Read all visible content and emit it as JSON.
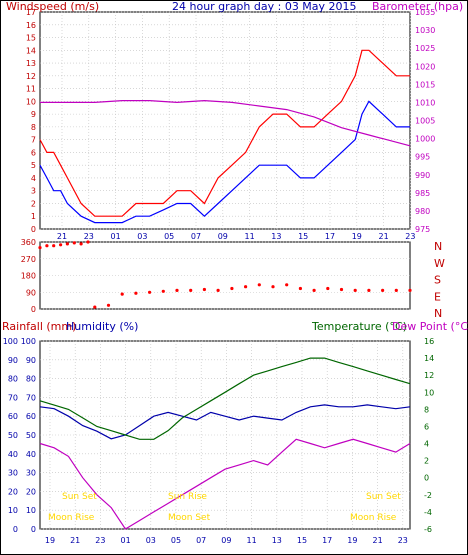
{
  "colors": {
    "wind": "#ff0000",
    "gust": "#e00000",
    "avg": "#0000ff",
    "baro": "#c000c0",
    "dir": "#ff0000",
    "rain_title": "#c00000",
    "humidity": "#0000aa",
    "temperature": "#006600",
    "dewpoint": "#c000c0",
    "astro": "#ffd700",
    "grid": "#c0c0c0"
  },
  "labels": {
    "windspeed": "Windspeed (m/s)",
    "title": "24 hour graph day : 03 May 2015",
    "barometer": "Barometer (hpa)",
    "rainfall": "Rainfall (mm)",
    "humidity": "Humidity (%)",
    "temperature": "Temperature (°C)",
    "dewpoint": "Dew Point (°C)",
    "sun_set": "Sun Set",
    "sun_rise": "Sun Rise",
    "moon_rise": "Moon Rise",
    "moon_set": "Moon Set"
  },
  "chart_data": [
    {
      "type": "line",
      "title": "24 hour graph day : 03 May 2015",
      "xlabel": "",
      "ylabel": "Windspeed (m/s)",
      "y2label": "Barometer (hpa)",
      "x_ticks": [
        "21",
        "23",
        "01",
        "03",
        "05",
        "07",
        "09",
        "11",
        "13",
        "15",
        "17",
        "19",
        "21",
        "23"
      ],
      "ylim": [
        0,
        17
      ],
      "y_ticks": [
        "0",
        "1",
        "2",
        "3",
        "4",
        "5",
        "6",
        "7",
        "8",
        "9",
        "10",
        "11",
        "12",
        "13",
        "14",
        "15",
        "16",
        "17"
      ],
      "y2lim": [
        975,
        1035
      ],
      "y2_ticks": [
        "975",
        "980",
        "985",
        "990",
        "995",
        "1000",
        "1005",
        "1010",
        "1015",
        "1020",
        "1025",
        "1030",
        "1035"
      ],
      "grid": true,
      "series": [
        {
          "name": "gust",
          "color": "wind",
          "axis": "left",
          "x": [
            0,
            0.5,
            1,
            1.5,
            2,
            3,
            4,
            5,
            6,
            7,
            8,
            9,
            10,
            11,
            12,
            13,
            14,
            15,
            16,
            17,
            18,
            19,
            20,
            21,
            22,
            23,
            23.5,
            24,
            25,
            26,
            27
          ],
          "values": [
            7,
            6,
            6,
            5,
            4,
            2,
            1,
            1,
            1,
            2,
            2,
            2,
            3,
            3,
            2,
            4,
            5,
            6,
            8,
            9,
            9,
            8,
            8,
            9,
            10,
            12,
            14,
            14,
            13,
            12,
            12
          ]
        },
        {
          "name": "average",
          "color": "avg",
          "axis": "left",
          "x": [
            0,
            0.5,
            1,
            1.5,
            2,
            3,
            4,
            5,
            6,
            7,
            8,
            9,
            10,
            11,
            12,
            13,
            14,
            15,
            16,
            17,
            18,
            19,
            20,
            21,
            22,
            23,
            23.5,
            24,
            25,
            26,
            27
          ],
          "values": [
            5,
            4,
            3,
            3,
            2,
            1,
            0.5,
            0.5,
            0.5,
            1,
            1,
            1.5,
            2,
            2,
            1,
            2,
            3,
            4,
            5,
            5,
            5,
            4,
            4,
            5,
            6,
            7,
            9,
            10,
            9,
            8,
            8
          ]
        },
        {
          "name": "barometer",
          "color": "baro",
          "axis": "right",
          "x": [
            0,
            2,
            4,
            6,
            8,
            10,
            12,
            14,
            16,
            18,
            20,
            22,
            24,
            25,
            26,
            27
          ],
          "values": [
            1010,
            1010,
            1010,
            1010.5,
            1010.5,
            1010,
            1010.5,
            1010,
            1009,
            1008,
            1006,
            1003,
            1001,
            1000,
            999,
            998
          ]
        }
      ]
    },
    {
      "type": "scatter",
      "ylabel_ticks": [
        "N",
        "W",
        "S",
        "E",
        "N"
      ],
      "y_ticks": [
        "0",
        "90",
        "180",
        "270",
        "360"
      ],
      "ylim": [
        0,
        360
      ],
      "series": [
        {
          "name": "direction",
          "color": "dir",
          "x": [
            0,
            0.5,
            1,
            1.5,
            2,
            2.5,
            3,
            3.5,
            4,
            5,
            6,
            7,
            8,
            9,
            10,
            11,
            12,
            13,
            14,
            15,
            16,
            17,
            18,
            19,
            20,
            21,
            22,
            23,
            24,
            25,
            26,
            27
          ],
          "values": [
            330,
            340,
            340,
            345,
            350,
            355,
            350,
            360,
            10,
            20,
            80,
            85,
            90,
            95,
            100,
            100,
            105,
            100,
            110,
            120,
            130,
            120,
            130,
            110,
            100,
            110,
            105,
            100,
            100,
            100,
            100,
            100
          ]
        }
      ]
    },
    {
      "type": "line",
      "xlabel": "",
      "y_left_label": "Rainfall (mm)",
      "y_left2_label": "Humidity (%)",
      "y_right_label": "Temperature (°C)",
      "y_right2_label": "Dew Point (°C)",
      "x_ticks": [
        "19",
        "21",
        "23",
        "01",
        "03",
        "05",
        "07",
        "09",
        "11",
        "13",
        "15",
        "17",
        "19",
        "21",
        "23"
      ],
      "humidity_ticks": [
        "0",
        "10",
        "20",
        "30",
        "40",
        "50",
        "60",
        "70",
        "80",
        "90",
        "100"
      ],
      "temp_ticks": [
        "-6",
        "-4",
        "-2",
        "0",
        "2",
        "4",
        "6",
        "8",
        "10",
        "12",
        "14",
        "16"
      ],
      "humidity_lim": [
        0,
        100
      ],
      "temp_lim": [
        -6,
        16
      ],
      "grid": true,
      "series": [
        {
          "name": "humidity",
          "color": "humidity",
          "axis": "left",
          "x": [
            0,
            1,
            2,
            3,
            4,
            5,
            6,
            7,
            8,
            9,
            10,
            11,
            12,
            13,
            14,
            15,
            16,
            17,
            18,
            19,
            20,
            21,
            22,
            23,
            24,
            25,
            26
          ],
          "values": [
            65,
            64,
            60,
            55,
            52,
            48,
            50,
            55,
            60,
            62,
            60,
            58,
            62,
            60,
            58,
            60,
            59,
            58,
            62,
            65,
            66,
            65,
            65,
            66,
            65,
            64,
            65
          ]
        },
        {
          "name": "temperature",
          "color": "temperature",
          "axis": "right",
          "x": [
            0,
            1,
            2,
            3,
            4,
            5,
            6,
            7,
            8,
            9,
            10,
            11,
            12,
            13,
            14,
            15,
            16,
            17,
            18,
            19,
            20,
            21,
            22,
            23,
            24,
            25,
            26
          ],
          "values": [
            9,
            8.5,
            8,
            7,
            6,
            5.5,
            5,
            4.5,
            4.5,
            5.5,
            7,
            8,
            9,
            10,
            11,
            12,
            12.5,
            13,
            13.5,
            14,
            14,
            13.5,
            13,
            12.5,
            12,
            11.5,
            11
          ]
        },
        {
          "name": "dew point",
          "color": "dewpoint",
          "axis": "right",
          "x": [
            0,
            1,
            2,
            3,
            4,
            5,
            6,
            7,
            8,
            9,
            10,
            11,
            12,
            13,
            14,
            15,
            16,
            17,
            18,
            19,
            20,
            21,
            22,
            23,
            24,
            25,
            26
          ],
          "values": [
            4,
            3.5,
            2.5,
            0,
            -2,
            -3.5,
            -6,
            -5,
            -4,
            -3,
            -2,
            -1,
            0,
            1,
            1.5,
            2,
            1.5,
            3,
            4.5,
            4,
            3.5,
            4,
            4.5,
            4,
            3.5,
            3,
            4
          ]
        }
      ]
    }
  ]
}
